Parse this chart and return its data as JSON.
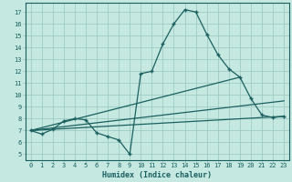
{
  "xlabel": "Humidex (Indice chaleur)",
  "bg_color": "#c5e8e0",
  "grid_color": "#9eccc4",
  "line_color": "#1a6060",
  "xlim": [
    -0.5,
    23.5
  ],
  "ylim": [
    4.5,
    17.8
  ],
  "xticks": [
    0,
    1,
    2,
    3,
    4,
    5,
    6,
    7,
    8,
    9,
    10,
    11,
    12,
    13,
    14,
    15,
    16,
    17,
    18,
    19,
    20,
    21,
    22,
    23
  ],
  "yticks": [
    5,
    6,
    7,
    8,
    9,
    10,
    11,
    12,
    13,
    14,
    15,
    16,
    17
  ],
  "curve_x": [
    0,
    1,
    2,
    3,
    4,
    5,
    6,
    7,
    8,
    9,
    10,
    11,
    12,
    13,
    14,
    15,
    16,
    17,
    18,
    19,
    20,
    21,
    22,
    23
  ],
  "curve_y": [
    7.0,
    6.7,
    7.1,
    7.8,
    8.0,
    7.9,
    6.8,
    6.5,
    6.2,
    5.0,
    11.8,
    12.0,
    14.3,
    16.0,
    17.2,
    17.0,
    15.1,
    13.4,
    12.2,
    11.5,
    9.7,
    8.3,
    8.1,
    8.2
  ],
  "line1_x": [
    0,
    23
  ],
  "line1_y": [
    7.0,
    8.2
  ],
  "line2_x": [
    0,
    19
  ],
  "line2_y": [
    7.0,
    11.5
  ],
  "line3_x": [
    0,
    23
  ],
  "line3_y": [
    7.0,
    9.5
  ]
}
